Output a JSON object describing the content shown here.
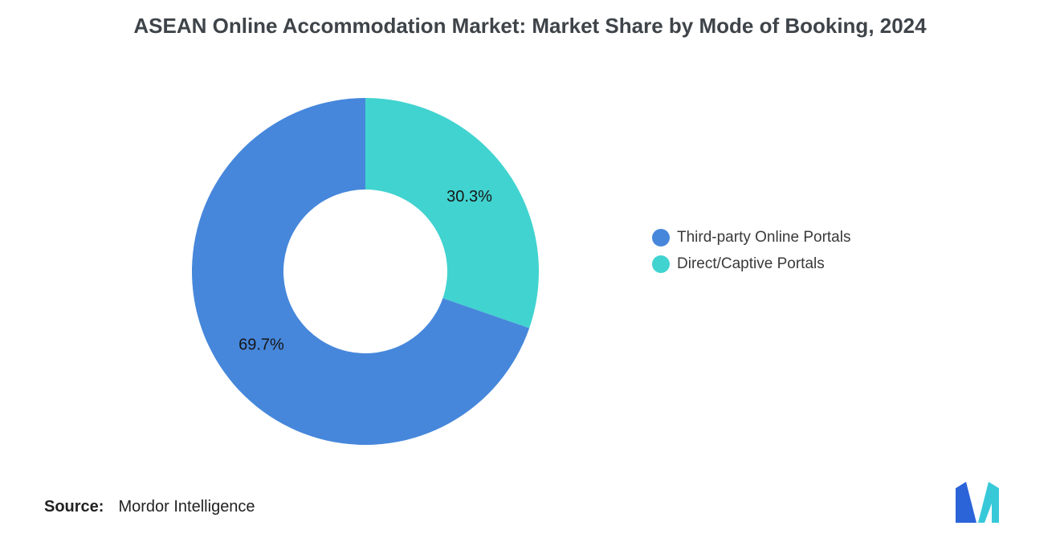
{
  "title": "ASEAN Online Accommodation Market: Market Share by Mode of Booking, 2024",
  "source": {
    "label": "Source:",
    "value": "Mordor Intelligence"
  },
  "legend": {
    "position": "right",
    "items": [
      {
        "label": "Third-party Online Portals",
        "color": "#4687DB"
      },
      {
        "label": "Direct/Captive Portals",
        "color": "#41D3D0"
      }
    ]
  },
  "logo": {
    "name": "mordor-intelligence-logo",
    "colors": {
      "blue": "#2B63D9",
      "teal": "#38C9D9"
    }
  },
  "chart_data": {
    "type": "pie",
    "donut": true,
    "title": "ASEAN Online Accommodation Market: Market Share by Mode of Booking, 2024",
    "start_angle_deg": 0,
    "direction": "clockwise",
    "inner_radius_ratio": 0.47,
    "legend_position": "right",
    "slices_clockwise_from_top": [
      {
        "name": "Direct/Captive Portals",
        "value": 30.3,
        "label": "30.3%",
        "color": "#41D3D0"
      },
      {
        "name": "Third-party Online Portals",
        "value": 69.7,
        "label": "69.7%",
        "color": "#4687DB"
      }
    ]
  }
}
